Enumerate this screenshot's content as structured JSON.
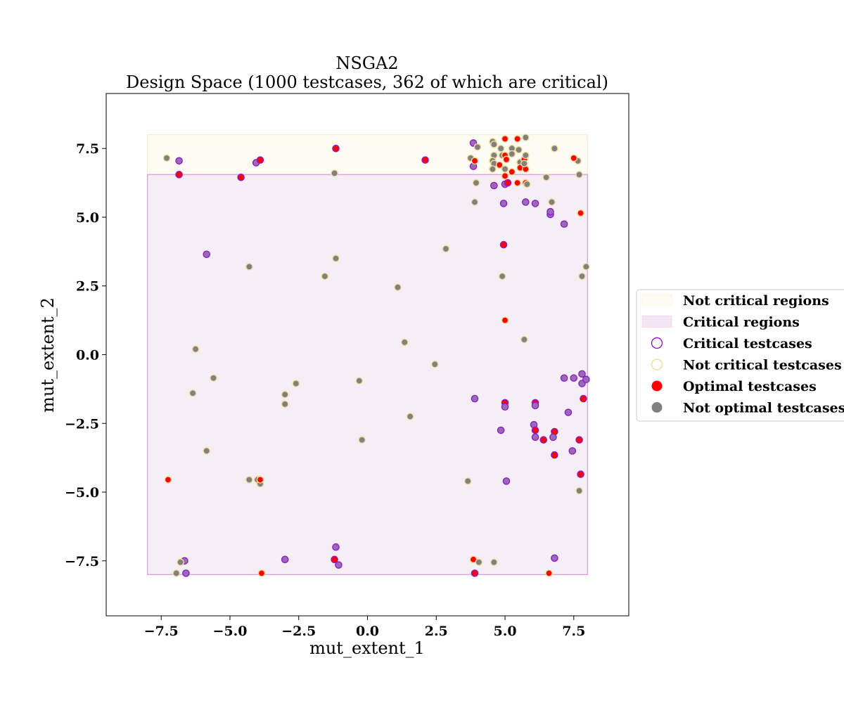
{
  "chart_data": {
    "type": "scatter",
    "title_line1": "NSGA2",
    "title_line2": "Design Space (1000 testcases, 362 of which are critical)",
    "xlabel": "mut_extent_1",
    "ylabel": "mut_extent_2",
    "xlim": [
      -9.5,
      9.5
    ],
    "ylim": [
      -9.5,
      9.5
    ],
    "x_ticks": [
      -7.5,
      -5.0,
      -2.5,
      0.0,
      2.5,
      5.0,
      7.5
    ],
    "y_ticks": [
      -7.5,
      -5.0,
      -2.5,
      0.0,
      2.5,
      5.0,
      7.5
    ],
    "x_tick_labels": [
      "−7.5",
      "−5.0",
      "−2.5",
      "0.0",
      "2.5",
      "5.0",
      "7.5"
    ],
    "y_tick_labels": [
      "−7.5",
      "−5.0",
      "−2.5",
      "0.0",
      "2.5",
      "5.0",
      "7.5"
    ],
    "grid": false,
    "legend_position": "right",
    "colors": {
      "not_critical_region_fill": "#fdfcf3",
      "not_critical_region_edge": "#f5ecc0",
      "critical_region_fill": "#f6eef6",
      "critical_region_edge": "#dca8dc",
      "critical_edge": "#8b1fc9",
      "not_critical_edge": "#f0dc98",
      "optimal_fill": "#ff0000",
      "not_optimal_fill": "#808080",
      "critical_point_fill": "#9a6bb3"
    },
    "regions": [
      {
        "type": "not_critical",
        "x0": -8.0,
        "x1": 8.0,
        "y0": 6.55,
        "y1": 8.0
      },
      {
        "type": "critical",
        "x0": -8.0,
        "x1": 8.0,
        "y0": -8.0,
        "y1": 6.55
      }
    ],
    "legend": [
      {
        "label": "Not critical regions",
        "kind": "region_not_critical"
      },
      {
        "label": "Critical regions",
        "kind": "region_critical"
      },
      {
        "label": "Critical testcases",
        "kind": "critical_marker"
      },
      {
        "label": "Not critical testcases",
        "kind": "not_critical_marker"
      },
      {
        "label": "Optimal testcases",
        "kind": "optimal_marker"
      },
      {
        "label": "Not optimal testcases",
        "kind": "not_optimal_marker"
      }
    ],
    "points": [
      {
        "x": -7.3,
        "y": 7.15,
        "critical": false,
        "optimal": false
      },
      {
        "x": -6.85,
        "y": 7.05,
        "critical": true,
        "optimal": false
      },
      {
        "x": -6.85,
        "y": 6.55,
        "critical": true,
        "optimal": true
      },
      {
        "x": -4.6,
        "y": 6.45,
        "critical": true,
        "optimal": true
      },
      {
        "x": -4.05,
        "y": 6.98,
        "critical": true,
        "optimal": false
      },
      {
        "x": -3.9,
        "y": 7.08,
        "critical": true,
        "optimal": true
      },
      {
        "x": -1.15,
        "y": 7.5,
        "critical": true,
        "optimal": true
      },
      {
        "x": -1.2,
        "y": 6.6,
        "critical": false,
        "optimal": false
      },
      {
        "x": 2.1,
        "y": 7.08,
        "critical": true,
        "optimal": true
      },
      {
        "x": -5.85,
        "y": 3.65,
        "critical": true,
        "optimal": false
      },
      {
        "x": -4.3,
        "y": 3.2,
        "critical": false,
        "optimal": false
      },
      {
        "x": -1.15,
        "y": 3.5,
        "critical": false,
        "optimal": false
      },
      {
        "x": -1.55,
        "y": 2.85,
        "critical": false,
        "optimal": false
      },
      {
        "x": 1.1,
        "y": 2.45,
        "critical": false,
        "optimal": false
      },
      {
        "x": 2.85,
        "y": 3.85,
        "critical": false,
        "optimal": false
      },
      {
        "x": -6.25,
        "y": 0.2,
        "critical": false,
        "optimal": false
      },
      {
        "x": -5.6,
        "y": -0.85,
        "critical": false,
        "optimal": false
      },
      {
        "x": -6.35,
        "y": -1.4,
        "critical": false,
        "optimal": false
      },
      {
        "x": -3.0,
        "y": -1.45,
        "critical": false,
        "optimal": false
      },
      {
        "x": -3.0,
        "y": -1.8,
        "critical": false,
        "optimal": false
      },
      {
        "x": -2.6,
        "y": -1.05,
        "critical": false,
        "optimal": false
      },
      {
        "x": -0.3,
        "y": -0.95,
        "critical": false,
        "optimal": false
      },
      {
        "x": 1.35,
        "y": 0.45,
        "critical": false,
        "optimal": false
      },
      {
        "x": 2.45,
        "y": -0.35,
        "critical": false,
        "optimal": false
      },
      {
        "x": 1.55,
        "y": -2.25,
        "critical": false,
        "optimal": false
      },
      {
        "x": -0.2,
        "y": -3.1,
        "critical": false,
        "optimal": false
      },
      {
        "x": -5.85,
        "y": -3.5,
        "critical": false,
        "optimal": false
      },
      {
        "x": -7.25,
        "y": -4.55,
        "critical": false,
        "optimal": true
      },
      {
        "x": -4.3,
        "y": -4.55,
        "critical": false,
        "optimal": false
      },
      {
        "x": -4.0,
        "y": -4.55,
        "critical": false,
        "optimal": false
      },
      {
        "x": -3.9,
        "y": -4.7,
        "critical": false,
        "optimal": false
      },
      {
        "x": -3.9,
        "y": -4.55,
        "critical": false,
        "optimal": true
      },
      {
        "x": -6.65,
        "y": -7.5,
        "critical": true,
        "optimal": false
      },
      {
        "x": -6.8,
        "y": -7.55,
        "critical": false,
        "optimal": false
      },
      {
        "x": -6.95,
        "y": -7.95,
        "critical": false,
        "optimal": false
      },
      {
        "x": -6.6,
        "y": -7.95,
        "critical": true,
        "optimal": false
      },
      {
        "x": -3.0,
        "y": -7.45,
        "critical": true,
        "optimal": false
      },
      {
        "x": -3.85,
        "y": -7.95,
        "critical": false,
        "optimal": true
      },
      {
        "x": -1.15,
        "y": -7.0,
        "critical": true,
        "optimal": false
      },
      {
        "x": -1.2,
        "y": -7.45,
        "critical": true,
        "optimal": true
      },
      {
        "x": -1.05,
        "y": -7.65,
        "critical": true,
        "optimal": false
      },
      {
        "x": 3.65,
        "y": -4.6,
        "critical": false,
        "optimal": false
      },
      {
        "x": 3.85,
        "y": -7.45,
        "critical": false,
        "optimal": true
      },
      {
        "x": 4.05,
        "y": -7.55,
        "critical": false,
        "optimal": false
      },
      {
        "x": 3.9,
        "y": -7.95,
        "critical": true,
        "optimal": true
      },
      {
        "x": 4.6,
        "y": -7.55,
        "critical": false,
        "optimal": false
      },
      {
        "x": 6.6,
        "y": -7.95,
        "critical": false,
        "optimal": true
      },
      {
        "x": 6.8,
        "y": -7.4,
        "critical": true,
        "optimal": false
      },
      {
        "x": 7.7,
        "y": -4.95,
        "critical": false,
        "optimal": false
      },
      {
        "x": 7.75,
        "y": -4.35,
        "critical": true,
        "optimal": true
      },
      {
        "x": 5.05,
        "y": -4.6,
        "critical": true,
        "optimal": false
      },
      {
        "x": 3.9,
        "y": -1.6,
        "critical": true,
        "optimal": false
      },
      {
        "x": 5.0,
        "y": -1.75,
        "critical": true,
        "optimal": true
      },
      {
        "x": 5.0,
        "y": -1.9,
        "critical": true,
        "optimal": false
      },
      {
        "x": 4.85,
        "y": -2.75,
        "critical": true,
        "optimal": false
      },
      {
        "x": 6.1,
        "y": -1.75,
        "critical": true,
        "optimal": true
      },
      {
        "x": 6.1,
        "y": -1.85,
        "critical": true,
        "optimal": false
      },
      {
        "x": 6.05,
        "y": -2.55,
        "critical": true,
        "optimal": false
      },
      {
        "x": 6.1,
        "y": -2.75,
        "critical": true,
        "optimal": true
      },
      {
        "x": 6.1,
        "y": -3.0,
        "critical": true,
        "optimal": false
      },
      {
        "x": 6.4,
        "y": -3.1,
        "critical": true,
        "optimal": true
      },
      {
        "x": 6.8,
        "y": -2.8,
        "critical": true,
        "optimal": true
      },
      {
        "x": 6.75,
        "y": -3.0,
        "critical": true,
        "optimal": false
      },
      {
        "x": 6.8,
        "y": -3.65,
        "critical": true,
        "optimal": true
      },
      {
        "x": 7.3,
        "y": -2.1,
        "critical": true,
        "optimal": false
      },
      {
        "x": 7.45,
        "y": -3.5,
        "critical": true,
        "optimal": false
      },
      {
        "x": 7.7,
        "y": -3.1,
        "critical": true,
        "optimal": true
      },
      {
        "x": 7.85,
        "y": -1.6,
        "critical": true,
        "optimal": true
      },
      {
        "x": 7.15,
        "y": -0.85,
        "critical": true,
        "optimal": false
      },
      {
        "x": 7.5,
        "y": -0.85,
        "critical": true,
        "optimal": false
      },
      {
        "x": 7.8,
        "y": -0.7,
        "critical": true,
        "optimal": false
      },
      {
        "x": 7.8,
        "y": -1.05,
        "critical": true,
        "optimal": false
      },
      {
        "x": 7.95,
        "y": -0.9,
        "critical": true,
        "optimal": false
      },
      {
        "x": 5.7,
        "y": 0.55,
        "critical": false,
        "optimal": false
      },
      {
        "x": 5.0,
        "y": 1.25,
        "critical": false,
        "optimal": true
      },
      {
        "x": 4.9,
        "y": 2.85,
        "critical": false,
        "optimal": false
      },
      {
        "x": 4.95,
        "y": 4.0,
        "critical": true,
        "optimal": true
      },
      {
        "x": 7.8,
        "y": 2.85,
        "critical": false,
        "optimal": false
      },
      {
        "x": 7.95,
        "y": 3.2,
        "critical": false,
        "optimal": false
      },
      {
        "x": 7.75,
        "y": 5.15,
        "critical": false,
        "optimal": true
      },
      {
        "x": 7.15,
        "y": 4.75,
        "critical": true,
        "optimal": false
      },
      {
        "x": 6.65,
        "y": 5.1,
        "critical": true,
        "optimal": false
      },
      {
        "x": 6.65,
        "y": 5.2,
        "critical": true,
        "optimal": false
      },
      {
        "x": 6.7,
        "y": 5.55,
        "critical": false,
        "optimal": false
      },
      {
        "x": 6.1,
        "y": 5.5,
        "critical": true,
        "optimal": false
      },
      {
        "x": 5.75,
        "y": 5.55,
        "critical": true,
        "optimal": false
      },
      {
        "x": 4.95,
        "y": 5.5,
        "critical": true,
        "optimal": false
      },
      {
        "x": 3.9,
        "y": 5.55,
        "critical": false,
        "optimal": false
      },
      {
        "x": 3.95,
        "y": 6.25,
        "critical": false,
        "optimal": false
      },
      {
        "x": 4.6,
        "y": 6.15,
        "critical": true,
        "optimal": false
      },
      {
        "x": 5.0,
        "y": 6.2,
        "critical": true,
        "optimal": false
      },
      {
        "x": 5.1,
        "y": 6.25,
        "critical": true,
        "optimal": true
      },
      {
        "x": 5.45,
        "y": 6.25,
        "critical": false,
        "optimal": true
      },
      {
        "x": 5.75,
        "y": 6.25,
        "critical": false,
        "optimal": true
      },
      {
        "x": 5.8,
        "y": 6.2,
        "critical": false,
        "optimal": false
      },
      {
        "x": 6.5,
        "y": 6.45,
        "critical": false,
        "optimal": false
      },
      {
        "x": 7.7,
        "y": 6.55,
        "critical": false,
        "optimal": false
      },
      {
        "x": 7.65,
        "y": 7.05,
        "critical": false,
        "optimal": false
      },
      {
        "x": 7.5,
        "y": 7.15,
        "critical": false,
        "optimal": true
      },
      {
        "x": 6.8,
        "y": 7.5,
        "critical": false,
        "optimal": false
      },
      {
        "x": 3.75,
        "y": 7.15,
        "critical": false,
        "optimal": false
      },
      {
        "x": 3.85,
        "y": 6.85,
        "critical": true,
        "optimal": false
      },
      {
        "x": 3.9,
        "y": 7.05,
        "critical": false,
        "optimal": true
      },
      {
        "x": 3.85,
        "y": 7.7,
        "critical": true,
        "optimal": false
      },
      {
        "x": 4.0,
        "y": 7.55,
        "critical": false,
        "optimal": false
      },
      {
        "x": 4.55,
        "y": 7.75,
        "critical": false,
        "optimal": false
      },
      {
        "x": 4.6,
        "y": 7.65,
        "critical": false,
        "optimal": false
      },
      {
        "x": 4.6,
        "y": 7.25,
        "critical": false,
        "optimal": false
      },
      {
        "x": 4.55,
        "y": 7.05,
        "critical": false,
        "optimal": false
      },
      {
        "x": 4.6,
        "y": 6.95,
        "critical": false,
        "optimal": false
      },
      {
        "x": 4.55,
        "y": 6.75,
        "critical": false,
        "optimal": false
      },
      {
        "x": 4.8,
        "y": 6.9,
        "critical": false,
        "optimal": true
      },
      {
        "x": 4.85,
        "y": 7.5,
        "critical": false,
        "optimal": false
      },
      {
        "x": 4.9,
        "y": 7.25,
        "critical": false,
        "optimal": false
      },
      {
        "x": 5.0,
        "y": 7.25,
        "critical": false,
        "optimal": true
      },
      {
        "x": 5.0,
        "y": 7.85,
        "critical": false,
        "optimal": true
      },
      {
        "x": 5.05,
        "y": 7.1,
        "critical": false,
        "optimal": true
      },
      {
        "x": 5.0,
        "y": 6.75,
        "critical": false,
        "optimal": false
      },
      {
        "x": 5.0,
        "y": 6.5,
        "critical": false,
        "optimal": true
      },
      {
        "x": 5.25,
        "y": 6.65,
        "critical": false,
        "optimal": true
      },
      {
        "x": 5.25,
        "y": 7.5,
        "critical": false,
        "optimal": false
      },
      {
        "x": 5.25,
        "y": 7.3,
        "critical": false,
        "optimal": false
      },
      {
        "x": 5.45,
        "y": 7.85,
        "critical": false,
        "optimal": true
      },
      {
        "x": 5.5,
        "y": 7.45,
        "critical": false,
        "optimal": false
      },
      {
        "x": 5.55,
        "y": 7.0,
        "critical": false,
        "optimal": false
      },
      {
        "x": 5.55,
        "y": 6.8,
        "critical": false,
        "optimal": true
      },
      {
        "x": 5.7,
        "y": 7.1,
        "critical": false,
        "optimal": true
      },
      {
        "x": 5.75,
        "y": 7.25,
        "critical": false,
        "optimal": false
      },
      {
        "x": 5.75,
        "y": 6.75,
        "critical": false,
        "optimal": true
      },
      {
        "x": 5.7,
        "y": 6.95,
        "critical": false,
        "optimal": false
      },
      {
        "x": 5.75,
        "y": 7.9,
        "critical": false,
        "optimal": false
      }
    ]
  }
}
